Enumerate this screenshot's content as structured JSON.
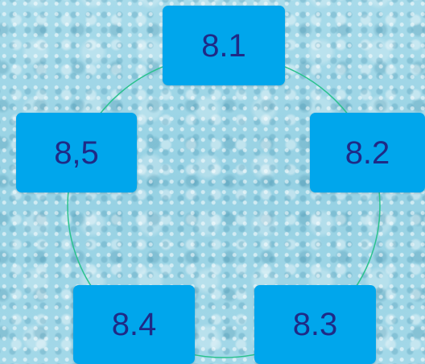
{
  "nodes": [
    {
      "label": "8.1"
    },
    {
      "label": "8.2"
    },
    {
      "label": "8.3"
    },
    {
      "label": "8.4"
    },
    {
      "label": "8,5"
    }
  ],
  "colors": {
    "box": "#00a6ec",
    "text": "#1f2a86",
    "ring": "#2bc28e",
    "background": "#9fd6e6"
  }
}
